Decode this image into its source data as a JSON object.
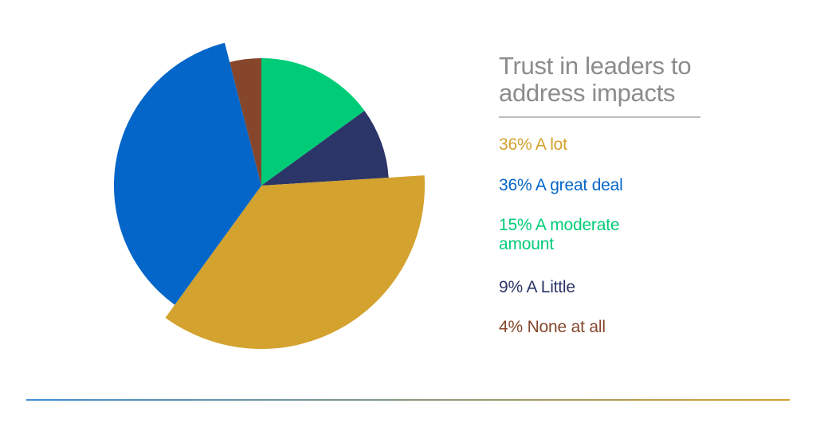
{
  "legend": {
    "title_line1": "Trust in leaders to",
    "title_line2": "address impacts"
  },
  "chart_data": {
    "type": "pie",
    "title": "Trust in leaders to address impacts",
    "slices": [
      {
        "label": "A moderate amount",
        "percent_label": "15%",
        "value": 15,
        "color": "#00cc77"
      },
      {
        "label": "A Little",
        "percent_label": "9%",
        "value": 9,
        "color": "#2b3568"
      },
      {
        "label": "A lot",
        "percent_label": "36%",
        "value": 36,
        "color": "#d4a22e"
      },
      {
        "label": "A great deal",
        "percent_label": "36%",
        "value": 36,
        "color": "#0466c8"
      },
      {
        "label": "None at all",
        "percent_label": "4%",
        "value": 4,
        "color": "#85462b"
      }
    ],
    "legend_order": [
      "A lot",
      "A great deal",
      "A moderate amount",
      "A Little",
      "None at all"
    ],
    "legend_placement": "right"
  },
  "colors": {
    "title_gray": "#8c8c8c",
    "rule_gray": "#bdbdbd",
    "bottom_rule_start": "#3f8fd6",
    "bottom_rule_end": "#d4a22e"
  }
}
